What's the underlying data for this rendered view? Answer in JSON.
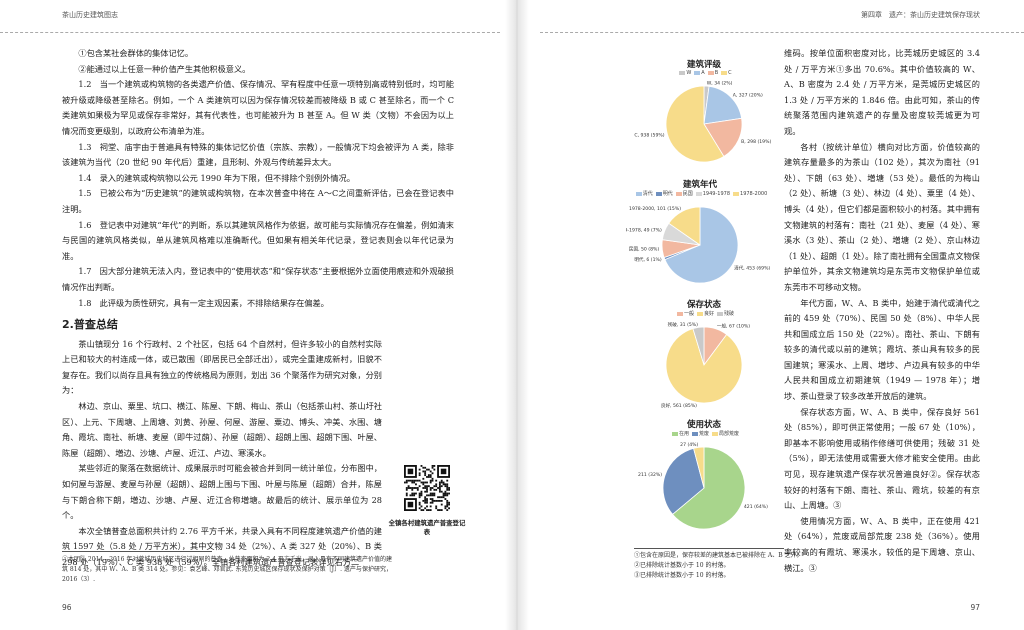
{
  "left_page": {
    "running_head": "茶山历史建筑图志",
    "page_number": "96",
    "paragraphs": [
      "①包含某社会群体的集体记忆。",
      "②能通过以上任意一种价值产生其他积极意义。",
      "1.2　当一个建筑或构筑物的各类遗产价值、保存情况、罕有程度中任意一项特别高或特别低时，均可能被升级或降级甚至除名。例如，一个 A 类建筑可以因为保存情况较差而被降级 B 或 C 甚至除名，而一个 C 类建筑如果极为罕见或保存非常好，其有代表性，也可能被升为 B 甚至 A。但 W 类（文物）不会因为以上情况而变更级别，以政府公布清单为准。",
      "1.3　祠堂、庙宇由于普遍具有特殊的集体记忆价值（宗族、宗教），一般情况下均会被评为 A 类，除非该建筑为当代（20 世纪 90 年代后）重建，且形制、外观与传统差异太大。",
      "1.4　录入的建筑或构筑物以公元 1990 年为下限，但不排除个别例外情况。",
      "1.5　已被公布为“历史建筑”的建筑或构筑物，在本次普查中将在 A～C之间重新评估，已会在登记表中注明。",
      "1.6　登记表中对建筑“年代”的判断，系以其建筑风格作为依据，故可能与实际情况存在偏差，例如清末与民国的建筑风格类似，单从建筑风格难以准确断代。但如果有相关年代记录，登记表则会以年代记录为准。",
      "1.7　因大部分建筑无法入内，登记表中的“使用状态”和“保存状态”主要根据外立面使用痕迹和外观破损情况作出判断。",
      "1.8　此评级为质性研究，具有一定主观因素，不排除结果存在偏差。"
    ],
    "section_title": "2.普查总结",
    "section_paragraphs": [
      "茶山镇现分 16 个行政村、2 个社区，包括 64 个自然村，但许多较小的自然村实际上已和较大的村连成一体，或已散围（即居民已全部迁出），或完全重建成新村，旧貌不复存在。我们以尚存且具有独立的传统格局为原则，划出 36 个聚落作为研究对象，分别为：",
      "林边、京山、粟里、坑口、横江、陈屋、下朗、梅山、茶山（包括茶山村、茶山圩社区）、上元、下周塘、上周塘、刘黄、孙屋、何屋、游屋、粟边、博头、冲美、水围、塘角、霞坑、南社、新塘、麦屋（即牛过蓢）、孙屋（超朗）、超朗上围、超朗下围、叶屋、陈屋（超朗）、増边、沙塘、卢屋、近江、卢边、寒溪水。",
      "某些邻近的聚落在数据统计、成果展示时可能会被合并到同一统计单位，分布图中，如何屋与游屋、麦屋与孙屋（超朗）、超朗上围与下围、叶屋与陈屋（超朗）合并，陈屋与下朗合称下朗，増边、沙塘、卢屋、近江合称増塘。故最后的统计、展示单位为 28 个。",
      "本次全镇普查总面积共计约 2.76 平方千米，共录入具有不同程度建筑遗产价值的建筑 1597 处（5.8 处 / 万平方米），其中文物 34 处（2%）、A 类 327 处（20%）、B 类 298 处（19%）、C 类 938 处（59%）。全镇各村建筑遗产普查登记表详见右方二"
    ],
    "footnotes": [
      "①本团队 2014—2016 年对莞城历史城区进行过相同的普查，总普查面积为 2.4 平方千米，录入具有不同建筑遗产价值的建筑 814 处，其中 W、A、B 类 314 处。参见：袁艺峰、邓官武. 东莞历史城区保存现状及保护对策［J］. 遗产与保护研究，2016（3）."
    ],
    "qr_caption": "全镇各村建筑遗产普查登记表"
  },
  "right_page": {
    "running_head": "第四章　遗产：茶山历史建筑保存现状",
    "page_number": "97",
    "paragraphs": [
      "维码。按单位面积密度对比，比莞城历史城区的 3.4 处 / 万平方米①多出 70.6%。其中价值较高的 W、A、B 密度为 2.4 处 / 万平方米，是莞城历史城区的 1.3 处 / 万平方米的 1.846 倍。由此可知，茶山的传统聚落范围内建筑遗产的存量及密度较莞城更为可观。",
      "各村（按统计单位）横向对比方面，价值较高的建筑存量最多的为茶山（102 处），其次为南社（91 处）、下朗（63 处）、増塘（53 处）。最低的为梅山（2 处）、新塘（3 处）、林边（4 处）、粟里（4 处）、博头（4 处），但它们都是面积较小的村落。其中拥有文物建筑的村落有：南社（21 处）、麦屋（4 处）、寒溪水（3 处）、茶山（2 处）、増塘（2 处）、京山林边（1 处）、超朗（1 处）。除了南社拥有全国重点文物保护单位外，其余文物建筑均是东莞市文物保护单位或东莞市不可移动文物。",
      "年代方面，W、A、B 类中，始建于清代或清代之前的 459 处（70%）、民国 50 处（8%）、中华人民共和国成立后 150 处（22%）。南社、茶山、下朗有较多的清代或以前的建筑；霞坑、茶山具有较多的民国建筑；寒溪水、上周、増埗、卢边具有较多的中华人民共和国成立初期建筑（1949 — 1978 年）；増埗、茶山登录了较多改革开放后的建筑。",
      "保存状态方面，W、A、B 类中，保存良好 561 处（85%），即可供正常使用；一般 67 处（10%），即基本不影响使用或稍作修缮可供使用；残破 31 处（5%），即无法使用或需要大修才能安全使用。由此可见，现存建筑遗产保存状况普遍良好②。保存状态较好的村落有下朗、南社、茶山、霞坑，较差的有京山、上周塘。③",
      "使用情况方面，W、A、B 类中，正在使用 421 处（64%），荒废或局部荒废 238 处（36%）。使用率较高的有霞坑、寒溪水，较低的是下周塘、京山、横江。③"
    ],
    "footnotes": [
      "①包含在原因是，保存较差的建筑基本已被排除在 A、B 之外。",
      "②已排除统计基数小于 10 的村落。",
      "③已排除统计基数小于 10 的村落。"
    ]
  },
  "colors": {
    "yellow": "#f7dc8a",
    "blue": "#a9c6e6",
    "salmon": "#f2b8a0",
    "gray": "#c9c9c9",
    "green": "#a8d58c",
    "steel": "#6e8fbf"
  },
  "chart_data": [
    {
      "type": "pie",
      "title": "建筑评级",
      "legend": [
        "W",
        "A",
        "B",
        "C"
      ],
      "labels": [
        "W, 34 (2%)",
        "A, 327 (20%)",
        "B, 298 (19%)",
        "C, 938 (59%)"
      ],
      "values": [
        34,
        327,
        298,
        938
      ],
      "colors": [
        "#c9c9c9",
        "#a9c6e6",
        "#f2b8a0",
        "#f7dc8a"
      ]
    },
    {
      "type": "pie",
      "title": "建筑年代",
      "legend": [
        "清代",
        "明代",
        "民国",
        "1949-1978",
        "1978-2000"
      ],
      "labels": [
        "清代, 453 (69%)",
        "明代, 6 (1%)",
        "民国, 50 (8%)",
        "1949-1978, 49 (7%)",
        "1978-2000, 101 (15%)"
      ],
      "values": [
        453,
        6,
        50,
        49,
        101
      ],
      "colors": [
        "#a9c6e6",
        "#6e8fbf",
        "#f2b8a0",
        "#d9d9d9",
        "#f7dc8a"
      ]
    },
    {
      "type": "pie",
      "title": "保存状态",
      "legend": [
        "一般",
        "良好",
        "残破"
      ],
      "labels": [
        "一般, 67 (10%)",
        "良好, 561 (85%)",
        "残破, 31 (5%)"
      ],
      "values": [
        67,
        561,
        31
      ],
      "colors": [
        "#f2b8a0",
        "#f7dc8a",
        "#c9c9c9"
      ]
    },
    {
      "type": "pie",
      "title": "使用状态",
      "legend": [
        "在用",
        "荒废",
        "局部荒废"
      ],
      "labels": [
        "421 (64%)",
        "211 (32%)",
        "27 (4%)"
      ],
      "values": [
        421,
        211,
        27
      ],
      "colors": [
        "#a8d58c",
        "#6e8fbf",
        "#f7dc8a"
      ]
    }
  ]
}
